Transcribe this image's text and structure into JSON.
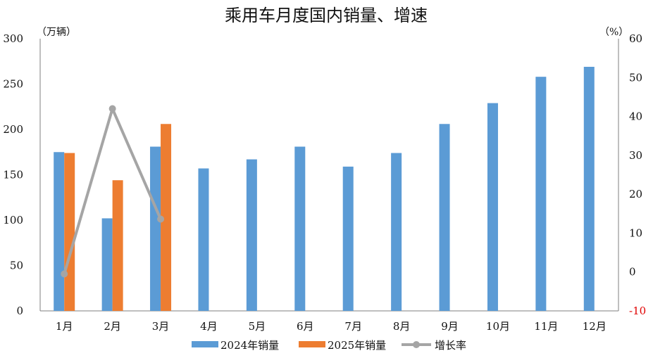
{
  "chart_data": {
    "type": "bar",
    "title": "乘用车月度国内销量、增速",
    "left_unit": "（万辆）",
    "right_unit": "（%）",
    "categories": [
      "1月",
      "2月",
      "3月",
      "4月",
      "5月",
      "6月",
      "7月",
      "8月",
      "9月",
      "10月",
      "11月",
      "12月"
    ],
    "series": [
      {
        "name": "2024年销量",
        "kind": "bar",
        "axis": "left",
        "color": "#5b9bd5",
        "values": [
          175,
          102,
          181,
          157,
          167,
          181,
          159,
          174,
          206,
          229,
          258,
          269
        ]
      },
      {
        "name": "2025年销量",
        "kind": "bar",
        "axis": "left",
        "color": "#ed7d31",
        "values": [
          174,
          144,
          206,
          null,
          null,
          null,
          null,
          null,
          null,
          null,
          null,
          null
        ]
      },
      {
        "name": "增长率",
        "kind": "line",
        "axis": "right",
        "color": "#a5a5a5",
        "values": [
          -0.5,
          42,
          13.6,
          null,
          null,
          null,
          null,
          null,
          null,
          null,
          null,
          null
        ]
      }
    ],
    "y_left": {
      "min": 0,
      "max": 300,
      "ticks": [
        0,
        50,
        100,
        150,
        200,
        250,
        300
      ]
    },
    "y_right": {
      "min": -10,
      "max": 60,
      "ticks": [
        -10,
        0,
        10,
        20,
        30,
        40,
        50,
        60
      ],
      "negative_color": "#ff0000"
    },
    "grid": false,
    "legend_position": "bottom"
  }
}
